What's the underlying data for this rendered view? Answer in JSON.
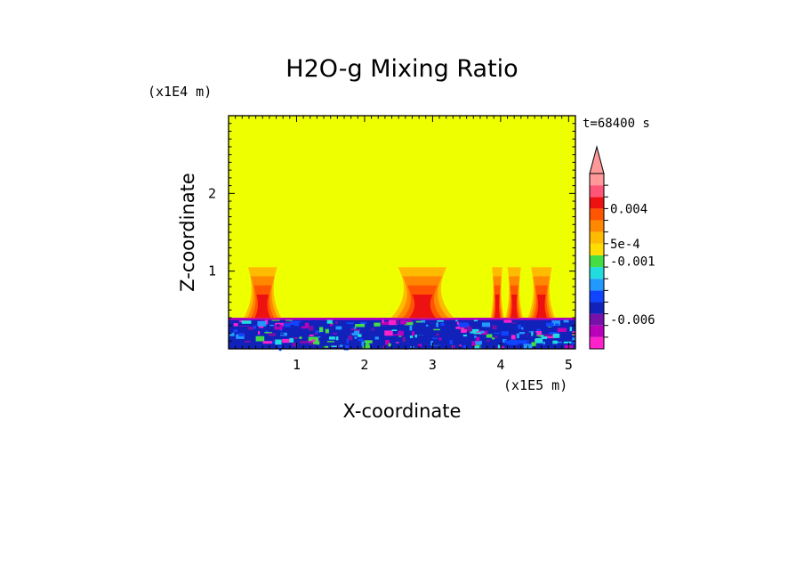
{
  "chart_data": {
    "type": "heatmap",
    "title": "H2O-g Mixing Ratio",
    "xlabel": "X-coordinate",
    "ylabel": "Z-coordinate",
    "x_scale_label": "(x1E5 m)",
    "y_scale_label": "(x1E4 m)",
    "time_label": "t=68400 s",
    "xlim": [
      0,
      5.1
    ],
    "ylim": [
      0,
      3.0
    ],
    "x_ticks": [
      {
        "value": 1,
        "label": "1"
      },
      {
        "value": 2,
        "label": "2"
      },
      {
        "value": 3,
        "label": "3"
      },
      {
        "value": 4,
        "label": "4"
      },
      {
        "value": 5,
        "label": "5"
      }
    ],
    "y_ticks": [
      {
        "value": 1,
        "label": "1"
      },
      {
        "value": 2,
        "label": "2"
      }
    ],
    "background_color": "#eeff00",
    "colorbar": {
      "colors": [
        "#ff22cc",
        "#bb00bb",
        "#7711aa",
        "#1122bb",
        "#1144ff",
        "#2299ff",
        "#22dddd",
        "#44dd44",
        "#ffdd00",
        "#ffbb00",
        "#ff8800",
        "#ff5500",
        "#ee1111",
        "#ff5577",
        "#ff9999"
      ],
      "labels": [
        {
          "text": "-0.006",
          "index": 2.5
        },
        {
          "text": "-0.001",
          "index": 7.5
        },
        {
          "text": "5e-4",
          "index": 9.0
        },
        {
          "text": "0.004",
          "index": 12.0
        }
      ]
    },
    "plumes": [
      {
        "x": 0.5,
        "top": 1.05,
        "halfwidth": 0.25,
        "intensity": 1.0
      },
      {
        "x": 2.85,
        "top": 1.05,
        "halfwidth": 0.42,
        "intensity": 1.0
      },
      {
        "x": 3.95,
        "top": 1.05,
        "halfwidth": 0.1,
        "intensity": 0.9
      },
      {
        "x": 4.2,
        "top": 1.05,
        "halfwidth": 0.13,
        "intensity": 0.9
      },
      {
        "x": 4.6,
        "top": 1.05,
        "halfwidth": 0.18,
        "intensity": 1.0
      }
    ],
    "boundary_layer_top": 0.4
  }
}
